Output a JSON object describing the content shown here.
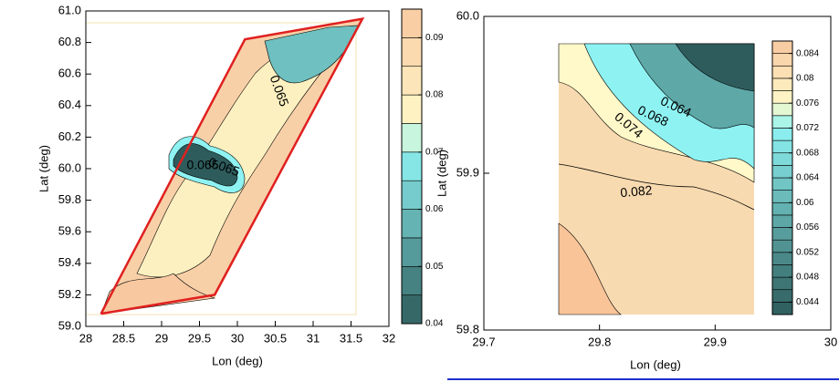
{
  "chart_data": [
    {
      "type": "contour",
      "xlabel": "Lon (deg)",
      "ylabel": "Lat (deg)",
      "xlim": [
        28,
        32
      ],
      "xticks": [
        28,
        28.5,
        29,
        29.5,
        30,
        30.5,
        31,
        31.5,
        32
      ],
      "ylim": [
        59,
        61
      ],
      "yticks": [
        {
          "value": 59,
          "label": "59.0"
        },
        59.2,
        59.4,
        59.6,
        59.8,
        {
          "value": 60,
          "label": "60.0"
        },
        60.2,
        60.4,
        60.6,
        60.8,
        {
          "value": 61,
          "label": "61.0"
        }
      ],
      "clim": [
        0.04,
        0.095
      ],
      "cticks": [
        0.04,
        0.05,
        0.06,
        0.07,
        0.08,
        0.09
      ],
      "levels": [
        0.04,
        0.045,
        0.05,
        0.055,
        0.06,
        0.065,
        0.07,
        0.075,
        0.08,
        0.085,
        0.09,
        0.095
      ],
      "colormap": [
        {
          "value": 0.04,
          "color": "#2e5c5c"
        },
        {
          "value": 0.07,
          "color": "#8ef2f2"
        },
        {
          "value": 0.075,
          "color": "#fff8c8"
        },
        {
          "value": 0.095,
          "color": "#f8c8a0"
        }
      ],
      "contour_labels": [
        "0.065",
        "0.065",
        "0.065"
      ],
      "boundary": {
        "color": "#e02020",
        "x": [
          28.2,
          29.7,
          31.65,
          30.1,
          28.2
        ],
        "y": [
          59.08,
          59.2,
          60.95,
          60.82,
          59.08
        ]
      }
    },
    {
      "type": "contour",
      "xlabel": "Lon (deg)",
      "ylabel": "Lat (deg)",
      "xlim": [
        29.7,
        30
      ],
      "xticks": [
        29.7,
        29.8,
        29.9,
        30
      ],
      "ylim": [
        59.8,
        60
      ],
      "yticks": [
        59.8,
        59.9,
        {
          "value": 60,
          "label": "60.0"
        }
      ],
      "clim": [
        0.042,
        0.086
      ],
      "cticks": [
        0.044,
        0.048,
        0.052,
        0.056,
        0.06,
        0.064,
        0.068,
        0.072,
        0.076,
        0.08,
        0.084
      ],
      "levels": [
        0.042,
        0.044,
        0.046,
        0.048,
        0.05,
        0.052,
        0.054,
        0.056,
        0.058,
        0.06,
        0.062,
        0.064,
        0.066,
        0.068,
        0.07,
        0.072,
        0.074,
        0.076,
        0.078,
        0.08,
        0.082,
        0.084,
        0.086
      ],
      "colormap": [
        {
          "value": 0.042,
          "color": "#2e5c5c"
        },
        {
          "value": 0.072,
          "color": "#8ef2f2"
        },
        {
          "value": 0.076,
          "color": "#fff8c8"
        },
        {
          "value": 0.086,
          "color": "#f8c8a0"
        }
      ],
      "contour_labels": [
        "0.064",
        "0.068",
        "0.074",
        "0.082"
      ]
    }
  ]
}
